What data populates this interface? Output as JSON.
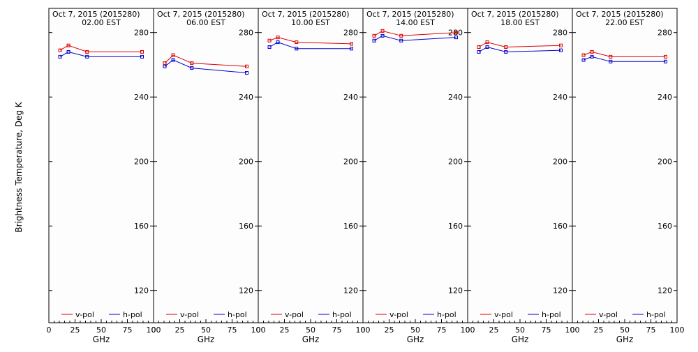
{
  "figure": {
    "ylabel": "Brightness Temperature, Deg K",
    "xlabel": "GHz",
    "legend": {
      "vpol_label": "v-pol",
      "hpol_label": "h-pol"
    },
    "colors": {
      "vpol": "#dd0000",
      "hpol": "#0000cc",
      "axis": "#000000",
      "background": "#fdfdfd"
    }
  },
  "chart_data": [
    {
      "type": "line",
      "title_line1": "Oct  7, 2015 (2015280)",
      "title_line2": "02.00 EST",
      "x": [
        10.7,
        18.7,
        36.5,
        89.0
      ],
      "series": [
        {
          "name": "v-pol",
          "values": [
            269,
            272,
            268,
            268
          ]
        },
        {
          "name": "h-pol",
          "values": [
            265,
            268,
            265,
            265
          ]
        }
      ],
      "xlim": [
        0,
        100
      ],
      "ylim": [
        100,
        295
      ],
      "xticks": [
        0,
        25,
        50,
        75,
        100
      ],
      "yticks": [
        120,
        160,
        200,
        240,
        280
      ]
    },
    {
      "type": "line",
      "title_line1": "Oct  7, 2015 (2015280)",
      "title_line2": "06.00 EST",
      "x": [
        10.7,
        18.7,
        36.5,
        89.0
      ],
      "series": [
        {
          "name": "v-pol",
          "values": [
            261,
            266,
            261,
            259
          ]
        },
        {
          "name": "h-pol",
          "values": [
            259,
            263,
            258,
            255
          ]
        }
      ],
      "xlim": [
        0,
        100
      ],
      "ylim": [
        100,
        295
      ],
      "xticks": [
        0,
        25,
        50,
        75,
        100
      ],
      "yticks": [
        120,
        160,
        200,
        240,
        280
      ]
    },
    {
      "type": "line",
      "title_line1": "Oct  7, 2015 (2015280)",
      "title_line2": "10.00 EST",
      "x": [
        10.7,
        18.7,
        36.5,
        89.0
      ],
      "series": [
        {
          "name": "v-pol",
          "values": [
            275,
            277,
            274,
            273
          ]
        },
        {
          "name": "h-pol",
          "values": [
            271,
            274,
            270,
            270
          ]
        }
      ],
      "xlim": [
        0,
        100
      ],
      "ylim": [
        100,
        295
      ],
      "xticks": [
        0,
        25,
        50,
        75,
        100
      ],
      "yticks": [
        120,
        160,
        200,
        240,
        280
      ]
    },
    {
      "type": "line",
      "title_line1": "Oct  7, 2015 (2015280)",
      "title_line2": "14.00 EST",
      "x": [
        10.7,
        18.7,
        36.5,
        89.0
      ],
      "series": [
        {
          "name": "v-pol",
          "values": [
            278,
            281,
            278,
            280
          ]
        },
        {
          "name": "h-pol",
          "values": [
            275,
            278,
            275,
            277
          ]
        }
      ],
      "xlim": [
        0,
        100
      ],
      "ylim": [
        100,
        295
      ],
      "xticks": [
        0,
        25,
        50,
        75,
        100
      ],
      "yticks": [
        120,
        160,
        200,
        240,
        280
      ]
    },
    {
      "type": "line",
      "title_line1": "Oct  7, 2015 (2015280)",
      "title_line2": "18.00 EST",
      "x": [
        10.7,
        18.7,
        36.5,
        89.0
      ],
      "series": [
        {
          "name": "v-pol",
          "values": [
            271,
            274,
            271,
            272
          ]
        },
        {
          "name": "h-pol",
          "values": [
            268,
            271,
            268,
            269
          ]
        }
      ],
      "xlim": [
        0,
        100
      ],
      "ylim": [
        100,
        295
      ],
      "xticks": [
        0,
        25,
        50,
        75,
        100
      ],
      "yticks": [
        120,
        160,
        200,
        240,
        280
      ]
    },
    {
      "type": "line",
      "title_line1": "Oct  7, 2015 (2015280)",
      "title_line2": "22.00 EST",
      "x": [
        10.7,
        18.7,
        36.5,
        89.0
      ],
      "series": [
        {
          "name": "v-pol",
          "values": [
            266,
            268,
            265,
            265
          ]
        },
        {
          "name": "h-pol",
          "values": [
            263,
            265,
            262,
            262
          ]
        }
      ],
      "xlim": [
        0,
        100
      ],
      "ylim": [
        100,
        295
      ],
      "xticks": [
        0,
        25,
        50,
        75,
        100
      ],
      "yticks": [
        120,
        160,
        200,
        240,
        280
      ]
    }
  ]
}
